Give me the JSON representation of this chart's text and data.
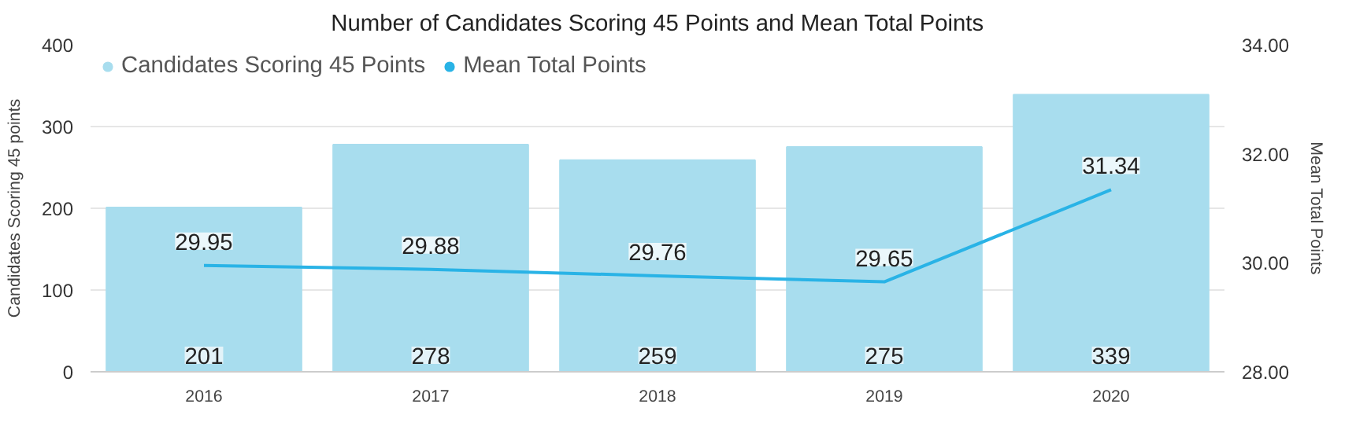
{
  "chart_data": {
    "type": "bar",
    "title": "Number of Candidates Scoring 45 Points and Mean Total Points",
    "ylabel": "Candidates Scoring 45 points",
    "y2label": "Mean Total Points",
    "categories": [
      "2016",
      "2017",
      "2018",
      "2019",
      "2020"
    ],
    "series": [
      {
        "name": "Candidates Scoring 45 Points",
        "color": "#a8ddee",
        "values": [
          201,
          278,
          259,
          275,
          339
        ]
      },
      {
        "name": "Mean Total Points",
        "color": "#29b3e6",
        "type": "line",
        "axis": "y2",
        "values": [
          29.95,
          29.88,
          29.76,
          29.65,
          31.34
        ]
      }
    ],
    "ylim": [
      0,
      400
    ],
    "yticks": [
      0,
      100,
      200,
      300,
      400
    ],
    "y2lim": [
      28,
      34
    ],
    "y2ticks": [
      {
        "value": 28,
        "label": "28.00"
      },
      {
        "value": 30,
        "label": "30.00"
      },
      {
        "value": 32,
        "label": "32.00"
      },
      {
        "value": 34,
        "label": "34.00"
      }
    ],
    "data_labels": true,
    "grid": "y",
    "legend": "top left",
    "marker": "none",
    "line_style": "solid"
  }
}
